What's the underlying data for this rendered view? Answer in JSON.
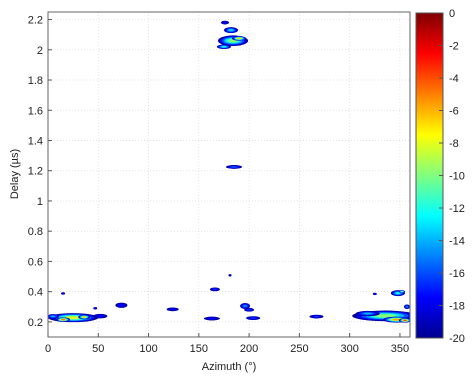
{
  "chart_data": {
    "type": "heatmap",
    "title": "",
    "xlabel": "Azimuth (°)",
    "ylabel": "Delay (µs)",
    "xlim": [
      0,
      360
    ],
    "ylim": [
      0.1,
      2.25
    ],
    "x_ticks": [
      0,
      50,
      100,
      150,
      200,
      250,
      300,
      350
    ],
    "y_ticks": [
      0.2,
      0.4,
      0.6,
      0.8,
      1,
      1.2,
      1.4,
      1.6,
      1.8,
      2,
      2.2
    ],
    "grid": true,
    "colorbar": {
      "min": -20,
      "max": 0,
      "ticks": [
        0,
        -2,
        -4,
        -6,
        -8,
        -10,
        -12,
        -14,
        -16,
        -18,
        -20
      ],
      "colormap": "jet",
      "placement": "right"
    },
    "clusters": [
      {
        "azimuth": 25,
        "delay": 0.228,
        "az_width": 50,
        "delay_width": 0.06,
        "peak": -6
      },
      {
        "azimuth": 15,
        "delay": 0.215,
        "az_width": 14,
        "delay_width": 0.03,
        "peak": -2
      },
      {
        "azimuth": 36,
        "delay": 0.232,
        "az_width": 12,
        "delay_width": 0.03,
        "peak": -4
      },
      {
        "azimuth": 5,
        "delay": 0.236,
        "az_width": 12,
        "delay_width": 0.03,
        "peak": -13
      },
      {
        "azimuth": 52,
        "delay": 0.238,
        "az_width": 14,
        "delay_width": 0.03,
        "peak": -17
      },
      {
        "azimuth": 15,
        "delay": 0.388,
        "az_width": 4,
        "delay_width": 0.015,
        "peak": -17
      },
      {
        "azimuth": 47,
        "delay": 0.29,
        "az_width": 4,
        "delay_width": 0.015,
        "peak": -17
      },
      {
        "azimuth": 73,
        "delay": 0.31,
        "az_width": 12,
        "delay_width": 0.035,
        "peak": -17
      },
      {
        "azimuth": 124,
        "delay": 0.283,
        "az_width": 12,
        "delay_width": 0.025,
        "peak": -17
      },
      {
        "azimuth": 163,
        "delay": 0.222,
        "az_width": 16,
        "delay_width": 0.025,
        "peak": -17
      },
      {
        "azimuth": 166,
        "delay": 0.415,
        "az_width": 10,
        "delay_width": 0.025,
        "peak": -16
      },
      {
        "azimuth": 181,
        "delay": 0.508,
        "az_width": 3,
        "delay_width": 0.012,
        "peak": -18
      },
      {
        "azimuth": 196,
        "delay": 0.305,
        "az_width": 10,
        "delay_width": 0.04,
        "peak": -14
      },
      {
        "azimuth": 200,
        "delay": 0.28,
        "az_width": 10,
        "delay_width": 0.025,
        "peak": -16
      },
      {
        "azimuth": 204,
        "delay": 0.225,
        "az_width": 14,
        "delay_width": 0.025,
        "peak": -16
      },
      {
        "azimuth": 267,
        "delay": 0.235,
        "az_width": 14,
        "delay_width": 0.025,
        "peak": -16
      },
      {
        "azimuth": 185,
        "delay": 1.225,
        "az_width": 16,
        "delay_width": 0.025,
        "peak": -15
      },
      {
        "azimuth": 176,
        "delay": 2.18,
        "az_width": 8,
        "delay_width": 0.025,
        "peak": -17
      },
      {
        "azimuth": 182,
        "delay": 2.13,
        "az_width": 14,
        "delay_width": 0.04,
        "peak": -12
      },
      {
        "azimuth": 184,
        "delay": 2.06,
        "az_width": 30,
        "delay_width": 0.07,
        "peak": -8
      },
      {
        "azimuth": 190,
        "delay": 2.075,
        "az_width": 14,
        "delay_width": 0.03,
        "peak": -4
      },
      {
        "azimuth": 175,
        "delay": 2.02,
        "az_width": 14,
        "delay_width": 0.03,
        "peak": -11
      },
      {
        "azimuth": 335,
        "delay": 0.24,
        "az_width": 65,
        "delay_width": 0.07,
        "peak": -8
      },
      {
        "azimuth": 347,
        "delay": 0.215,
        "az_width": 28,
        "delay_width": 0.04,
        "peak": -3
      },
      {
        "azimuth": 355,
        "delay": 0.21,
        "az_width": 12,
        "delay_width": 0.03,
        "peak": -1
      },
      {
        "azimuth": 318,
        "delay": 0.255,
        "az_width": 24,
        "delay_width": 0.035,
        "peak": -13
      },
      {
        "azimuth": 325,
        "delay": 0.385,
        "az_width": 4,
        "delay_width": 0.015,
        "peak": -17
      },
      {
        "azimuth": 348,
        "delay": 0.39,
        "az_width": 14,
        "delay_width": 0.04,
        "peak": -11
      },
      {
        "azimuth": 352,
        "delay": 0.4,
        "az_width": 6,
        "delay_width": 0.02,
        "peak": -8
      },
      {
        "azimuth": 357,
        "delay": 0.3,
        "az_width": 6,
        "delay_width": 0.03,
        "peak": -14
      }
    ]
  }
}
